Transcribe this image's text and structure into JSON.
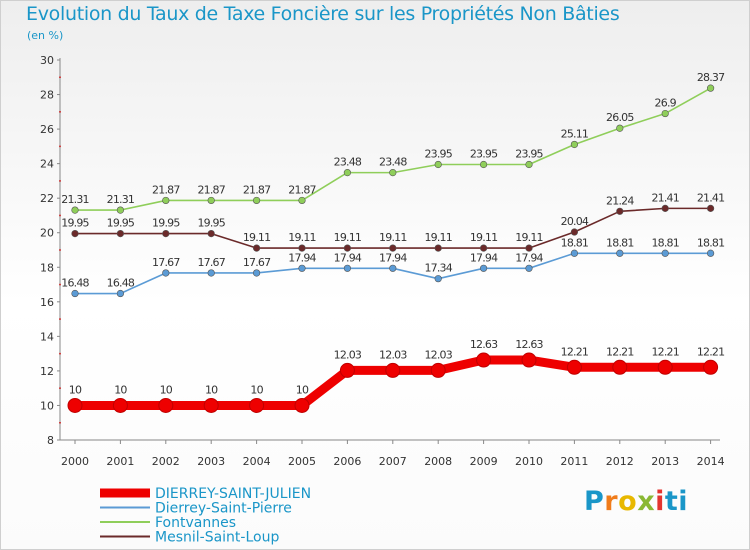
{
  "chart_data": {
    "type": "line",
    "title": "Evolution du Taux de Taxe Foncière sur les Propriétés Non Bâties",
    "subtitle": "(en %)",
    "x": [
      "2000",
      "2001",
      "2002",
      "2003",
      "2004",
      "2005",
      "2006",
      "2007",
      "2008",
      "2009",
      "2010",
      "2011",
      "2012",
      "2013",
      "2014"
    ],
    "ylim": [
      8,
      30
    ],
    "yticks": [
      8,
      10,
      12,
      14,
      16,
      18,
      20,
      22,
      24,
      26,
      28,
      30
    ],
    "grid": false,
    "legend_position": "bottom-left",
    "series": [
      {
        "name": "DIERREY-SAINT-JULIEN",
        "color": "#ee0000",
        "values": [
          10,
          10,
          10,
          10,
          10,
          10,
          12.03,
          12.03,
          12.03,
          12.63,
          12.63,
          12.21,
          12.21,
          12.21,
          12.21
        ],
        "labels": [
          "10",
          "10",
          "10",
          "10",
          "10",
          "10",
          "12.03",
          "12.03",
          "12.03",
          "12.63",
          "12.63",
          "12.21",
          "12.21",
          "12.21",
          "12.21"
        ]
      },
      {
        "name": "Dierrey-Saint-Pierre",
        "color": "#5b9bd5",
        "values": [
          16.48,
          16.48,
          17.67,
          17.67,
          17.67,
          17.94,
          17.94,
          17.94,
          17.34,
          17.94,
          17.94,
          18.81,
          18.81,
          18.81,
          18.81
        ],
        "labels": [
          "16.48",
          "16.48",
          "17.67",
          "17.67",
          "17.67",
          "17.94",
          "17.94",
          "17.94",
          "17.34",
          "17.94",
          "17.94",
          "18.81",
          "18.81",
          "18.81",
          "18.81"
        ]
      },
      {
        "name": "Fontvannes",
        "color": "#8fce5a",
        "values": [
          21.31,
          21.31,
          21.87,
          21.87,
          21.87,
          21.87,
          23.48,
          23.48,
          23.95,
          23.95,
          23.95,
          25.11,
          26.05,
          26.9,
          28.37
        ],
        "labels": [
          "21.31",
          "21.31",
          "21.87",
          "21.87",
          "21.87",
          "21.87",
          "23.48",
          "23.48",
          "23.95",
          "23.95",
          "23.95",
          "25.11",
          "26.05",
          "26.9",
          "28.37"
        ]
      },
      {
        "name": "Mesnil-Saint-Loup",
        "color": "#6b2a2a",
        "values": [
          19.95,
          19.95,
          19.95,
          19.95,
          19.11,
          19.11,
          19.11,
          19.11,
          19.11,
          19.11,
          19.11,
          20.04,
          21.24,
          21.41,
          21.41
        ],
        "labels": [
          "19.95",
          "19.95",
          "19.95",
          "19.95",
          "19.11",
          "19.11",
          "19.11",
          "19.11",
          "19.11",
          "19.11",
          "19.11",
          "20.04",
          "21.24",
          "21.41",
          "21.41"
        ]
      }
    ]
  },
  "logo": {
    "parts": [
      "P",
      "r",
      "o",
      "x",
      "i",
      "ti"
    ]
  }
}
